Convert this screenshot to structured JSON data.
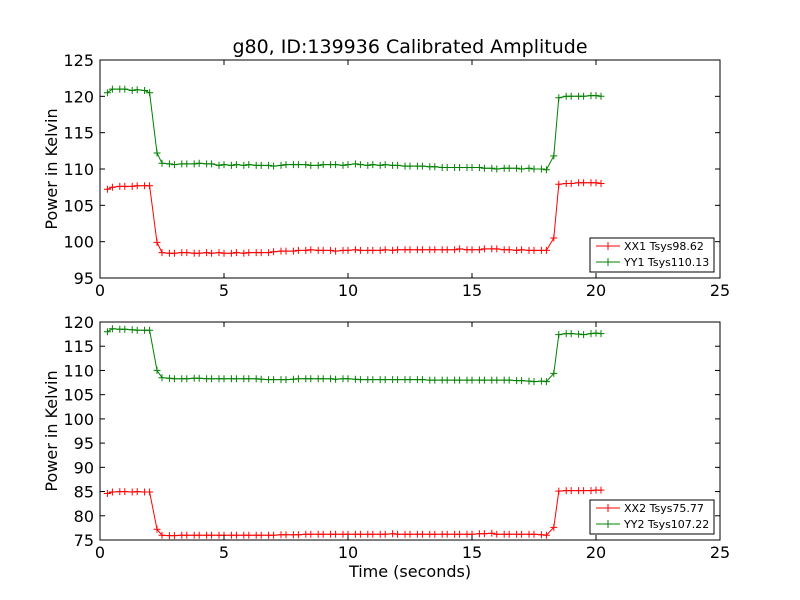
{
  "figure": {
    "title": "g80, ID:139936 Calibrated Amplitude",
    "xlabel": "Time (seconds)"
  },
  "chart_data": [
    {
      "type": "line",
      "title": "g80, ID:139936 Calibrated Amplitude",
      "xlabel": "",
      "ylabel": "Power in Kelvin",
      "xlim": [
        0,
        25
      ],
      "ylim": [
        95,
        125
      ],
      "xticks": [
        0,
        5,
        10,
        15,
        20,
        25
      ],
      "yticks": [
        95,
        100,
        105,
        110,
        115,
        120,
        125
      ],
      "grid": false,
      "legend_position": "lower-right",
      "x": [
        0.3,
        0.5,
        0.8,
        1.0,
        1.3,
        1.5,
        1.8,
        2.0,
        2.3,
        2.5,
        2.8,
        3.0,
        3.3,
        3.5,
        3.8,
        4.0,
        4.3,
        4.5,
        4.8,
        5.0,
        5.3,
        5.5,
        5.8,
        6.0,
        6.3,
        6.5,
        6.8,
        7.0,
        7.3,
        7.5,
        7.8,
        8.0,
        8.3,
        8.5,
        8.8,
        9.0,
        9.3,
        9.5,
        9.8,
        10.0,
        10.3,
        10.5,
        10.8,
        11.0,
        11.3,
        11.5,
        11.8,
        12.0,
        12.3,
        12.5,
        12.8,
        13.0,
        13.3,
        13.5,
        13.8,
        14.0,
        14.3,
        14.5,
        14.8,
        15.0,
        15.3,
        15.5,
        15.8,
        16.0,
        16.3,
        16.5,
        16.8,
        17.0,
        17.3,
        17.5,
        17.8,
        18.0,
        18.3,
        18.5,
        18.8,
        19.0,
        19.3,
        19.5,
        19.8,
        20.0,
        20.2
      ],
      "series": [
        {
          "name": "XX1 Tsys98.62",
          "color": "#ff0000",
          "values": [
            107.2,
            107.5,
            107.6,
            107.6,
            107.6,
            107.7,
            107.7,
            107.7,
            99.9,
            98.5,
            98.4,
            98.4,
            98.5,
            98.5,
            98.4,
            98.4,
            98.5,
            98.4,
            98.5,
            98.4,
            98.4,
            98.5,
            98.4,
            98.5,
            98.5,
            98.5,
            98.5,
            98.6,
            98.7,
            98.7,
            98.7,
            98.8,
            98.8,
            98.9,
            98.8,
            98.8,
            98.8,
            98.7,
            98.8,
            98.8,
            98.9,
            98.8,
            98.8,
            98.8,
            98.8,
            98.9,
            98.8,
            98.9,
            98.9,
            98.9,
            98.9,
            98.9,
            98.9,
            98.9,
            98.9,
            98.9,
            98.9,
            99.0,
            98.9,
            98.9,
            98.9,
            99.0,
            99.0,
            99.0,
            98.9,
            98.9,
            98.8,
            98.9,
            98.8,
            98.8,
            98.8,
            98.8,
            100.5,
            107.9,
            108.0,
            108.0,
            108.1,
            108.1,
            108.1,
            108.1,
            108.0
          ]
        },
        {
          "name": "YY1 Tsys110.13",
          "color": "#008000",
          "values": [
            120.5,
            121.0,
            121.0,
            121.0,
            120.8,
            120.9,
            120.8,
            120.5,
            112.2,
            110.8,
            110.7,
            110.6,
            110.7,
            110.7,
            110.7,
            110.8,
            110.7,
            110.7,
            110.5,
            110.6,
            110.5,
            110.6,
            110.5,
            110.6,
            110.5,
            110.5,
            110.5,
            110.4,
            110.5,
            110.6,
            110.6,
            110.6,
            110.6,
            110.5,
            110.5,
            110.6,
            110.6,
            110.6,
            110.5,
            110.6,
            110.7,
            110.6,
            110.5,
            110.6,
            110.5,
            110.6,
            110.5,
            110.5,
            110.4,
            110.4,
            110.4,
            110.4,
            110.3,
            110.3,
            110.2,
            110.2,
            110.2,
            110.2,
            110.2,
            110.2,
            110.2,
            110.1,
            110.1,
            110.0,
            110.1,
            110.1,
            110.1,
            110.0,
            110.1,
            110.0,
            110.0,
            109.9,
            111.8,
            119.8,
            120.0,
            120.0,
            120.0,
            120.0,
            120.1,
            120.1,
            120.0
          ]
        }
      ]
    },
    {
      "type": "line",
      "title": "",
      "xlabel": "Time (seconds)",
      "ylabel": "Power in Kelvin",
      "xlim": [
        0,
        25
      ],
      "ylim": [
        75,
        120
      ],
      "xticks": [
        0,
        5,
        10,
        15,
        20,
        25
      ],
      "yticks": [
        75,
        80,
        85,
        90,
        95,
        100,
        105,
        110,
        115,
        120
      ],
      "grid": false,
      "legend_position": "lower-right",
      "x": [
        0.3,
        0.5,
        0.8,
        1.0,
        1.3,
        1.5,
        1.8,
        2.0,
        2.3,
        2.5,
        2.8,
        3.0,
        3.3,
        3.5,
        3.8,
        4.0,
        4.3,
        4.5,
        4.8,
        5.0,
        5.3,
        5.5,
        5.8,
        6.0,
        6.3,
        6.5,
        6.8,
        7.0,
        7.3,
        7.5,
        7.8,
        8.0,
        8.3,
        8.5,
        8.8,
        9.0,
        9.3,
        9.5,
        9.8,
        10.0,
        10.3,
        10.5,
        10.8,
        11.0,
        11.3,
        11.5,
        11.8,
        12.0,
        12.3,
        12.5,
        12.8,
        13.0,
        13.3,
        13.5,
        13.8,
        14.0,
        14.3,
        14.5,
        14.8,
        15.0,
        15.3,
        15.5,
        15.8,
        16.0,
        16.3,
        16.5,
        16.8,
        17.0,
        17.3,
        17.5,
        17.8,
        18.0,
        18.3,
        18.5,
        18.8,
        19.0,
        19.3,
        19.5,
        19.8,
        20.0,
        20.2
      ],
      "series": [
        {
          "name": "XX2 Tsys75.77",
          "color": "#ff0000",
          "values": [
            84.6,
            84.9,
            85.0,
            85.0,
            84.9,
            85.0,
            84.9,
            84.9,
            77.2,
            76.0,
            75.9,
            75.9,
            76.0,
            76.0,
            76.0,
            76.0,
            76.0,
            76.0,
            76.0,
            76.0,
            76.0,
            76.0,
            76.0,
            76.0,
            76.0,
            76.0,
            76.0,
            76.0,
            76.1,
            76.1,
            76.1,
            76.1,
            76.2,
            76.2,
            76.2,
            76.2,
            76.2,
            76.2,
            76.2,
            76.2,
            76.2,
            76.2,
            76.2,
            76.2,
            76.2,
            76.2,
            76.3,
            76.2,
            76.2,
            76.2,
            76.2,
            76.2,
            76.2,
            76.2,
            76.2,
            76.2,
            76.2,
            76.2,
            76.2,
            76.2,
            76.3,
            76.3,
            76.4,
            76.2,
            76.2,
            76.2,
            76.2,
            76.2,
            76.2,
            76.2,
            76.1,
            76.0,
            77.6,
            85.1,
            85.2,
            85.2,
            85.2,
            85.2,
            85.2,
            85.3,
            85.3
          ]
        },
        {
          "name": "YY2 Tsys107.22",
          "color": "#008000",
          "values": [
            118.0,
            118.6,
            118.5,
            118.5,
            118.4,
            118.3,
            118.3,
            118.3,
            110.0,
            108.5,
            108.4,
            108.3,
            108.3,
            108.3,
            108.4,
            108.4,
            108.3,
            108.3,
            108.3,
            108.3,
            108.3,
            108.3,
            108.3,
            108.3,
            108.3,
            108.2,
            108.1,
            108.1,
            108.1,
            108.1,
            108.2,
            108.3,
            108.3,
            108.3,
            108.3,
            108.3,
            108.3,
            108.2,
            108.3,
            108.3,
            108.2,
            108.1,
            108.1,
            108.1,
            108.1,
            108.1,
            108.1,
            108.1,
            108.1,
            108.1,
            108.1,
            108.1,
            108.0,
            108.0,
            108.0,
            108.0,
            108.0,
            108.0,
            108.0,
            108.0,
            108.0,
            108.0,
            108.0,
            108.0,
            108.0,
            108.0,
            107.9,
            107.9,
            107.8,
            107.7,
            107.8,
            107.7,
            109.4,
            117.4,
            117.6,
            117.6,
            117.5,
            117.4,
            117.6,
            117.7,
            117.6
          ]
        }
      ]
    }
  ]
}
